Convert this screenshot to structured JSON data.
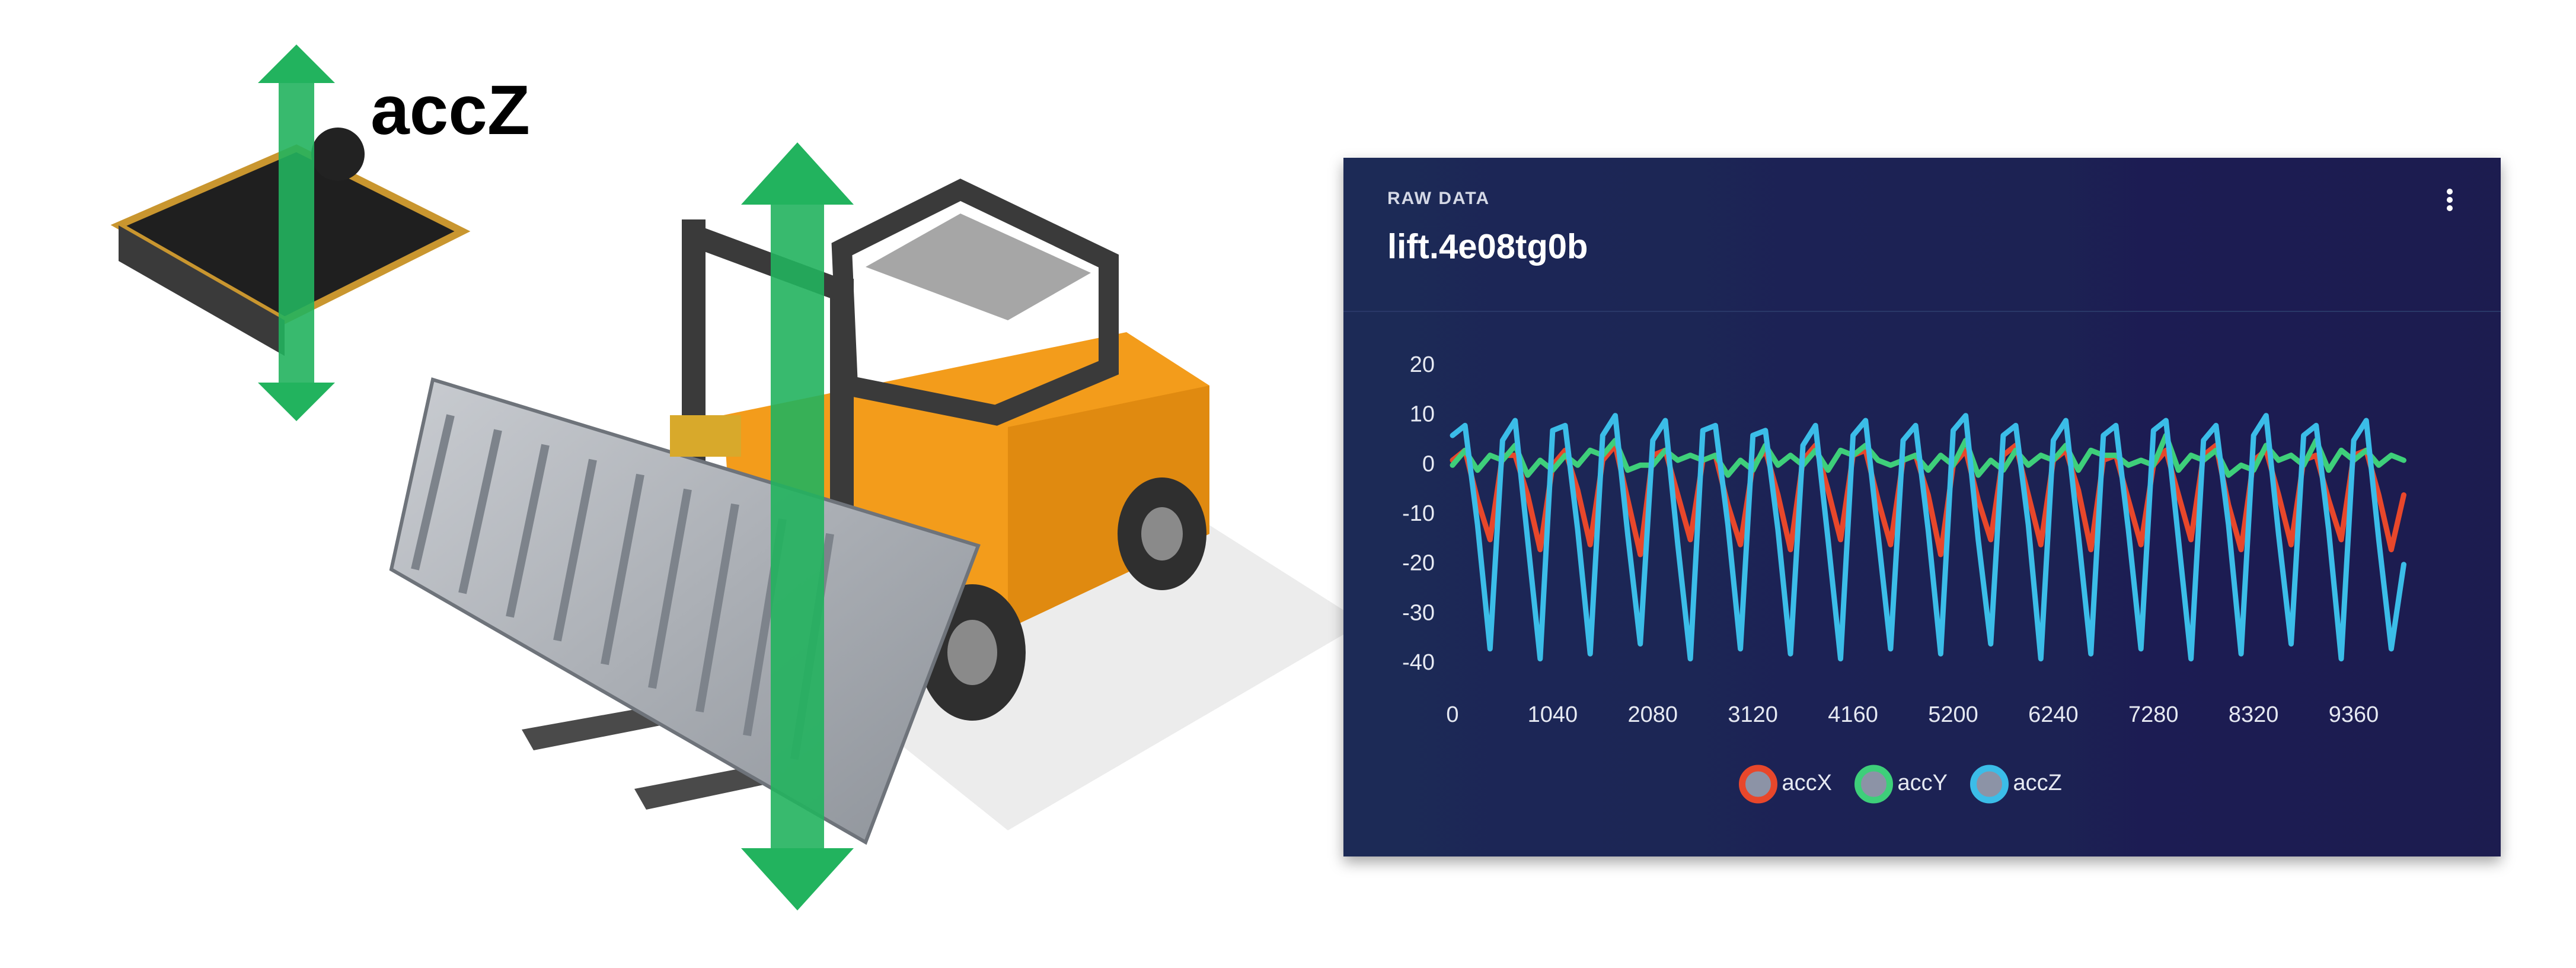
{
  "annotations": [
    "accZ"
  ],
  "chart_data": {
    "type": "line",
    "subtitle": "RAW DATA",
    "title": "lift.4e08tg0b",
    "xlim": [
      0,
      10000
    ],
    "xticks": [
      0,
      1040,
      2080,
      3120,
      4160,
      5200,
      6240,
      7280,
      8320,
      9360
    ],
    "ylim": [
      -40,
      20
    ],
    "yticks": [
      -40,
      -30,
      -20,
      -10,
      0,
      10,
      20
    ],
    "grid": false,
    "legend": "bottom",
    "x": [
      0,
      130,
      260,
      390,
      520,
      650,
      780,
      910,
      1040,
      1170,
      1300,
      1430,
      1560,
      1690,
      1820,
      1950,
      2080,
      2210,
      2340,
      2470,
      2600,
      2730,
      2860,
      2990,
      3120,
      3250,
      3380,
      3510,
      3640,
      3770,
      3900,
      4030,
      4160,
      4290,
      4420,
      4550,
      4680,
      4810,
      4940,
      5070,
      5200,
      5330,
      5460,
      5590,
      5720,
      5850,
      5980,
      6110,
      6240,
      6370,
      6500,
      6630,
      6760,
      6890,
      7020,
      7150,
      7280,
      7410,
      7540,
      7670,
      7800,
      7930,
      8060,
      8190,
      8320,
      8450,
      8580,
      8710,
      8840,
      8970,
      9100,
      9230,
      9360,
      9490,
      9620,
      9750,
      9880
    ],
    "series": [
      {
        "name": "accX",
        "color": "#e8472b",
        "values": [
          1,
          3,
          -7,
          -15,
          2,
          2,
          -6,
          -17,
          0,
          3,
          -5,
          -16,
          1,
          4,
          -7,
          -18,
          2,
          3,
          -6,
          -15,
          1,
          2,
          -8,
          -16,
          0,
          3,
          -6,
          -17,
          1,
          4,
          -5,
          -15,
          2,
          3,
          -7,
          -16,
          1,
          2,
          -6,
          -18,
          0,
          3,
          -7,
          -15,
          2,
          4,
          -6,
          -16,
          1,
          3,
          -5,
          -17,
          1,
          2,
          -7,
          -16,
          0,
          3,
          -6,
          -15,
          2,
          4,
          -8,
          -17,
          1,
          3,
          -6,
          -16,
          1,
          2,
          -7,
          -15,
          2,
          3,
          -6,
          -17,
          -6
        ]
      },
      {
        "name": "accY",
        "color": "#3ecf7a",
        "values": [
          0,
          3,
          -1,
          2,
          1,
          4,
          -2,
          1,
          -1,
          2,
          0,
          3,
          2,
          5,
          -1,
          0,
          0,
          3,
          1,
          2,
          1,
          2,
          -2,
          1,
          -1,
          4,
          0,
          2,
          0,
          3,
          -1,
          3,
          2,
          4,
          1,
          0,
          1,
          2,
          -1,
          2,
          0,
          5,
          -2,
          1,
          -1,
          3,
          0,
          2,
          1,
          4,
          -1,
          3,
          2,
          2,
          0,
          1,
          0,
          6,
          -1,
          2,
          1,
          3,
          -2,
          0,
          -1,
          4,
          1,
          2,
          0,
          5,
          -1,
          3,
          1,
          3,
          0,
          2,
          1
        ]
      },
      {
        "name": "accZ",
        "color": "#3bbde8",
        "values": [
          6,
          8,
          -12,
          -37,
          5,
          9,
          -15,
          -39,
          7,
          8,
          -13,
          -38,
          6,
          10,
          -14,
          -36,
          5,
          9,
          -16,
          -39,
          7,
          8,
          -12,
          -37,
          6,
          7,
          -13,
          -38,
          4,
          8,
          -15,
          -39,
          6,
          9,
          -14,
          -37,
          5,
          8,
          -13,
          -38,
          7,
          10,
          -15,
          -36,
          6,
          8,
          -12,
          -39,
          5,
          9,
          -14,
          -38,
          6,
          8,
          -13,
          -37,
          7,
          9,
          -15,
          -39,
          5,
          8,
          -12,
          -38,
          6,
          10,
          -14,
          -36,
          6,
          8,
          -13,
          -39,
          5,
          9,
          -15,
          -37,
          -20
        ]
      }
    ]
  }
}
